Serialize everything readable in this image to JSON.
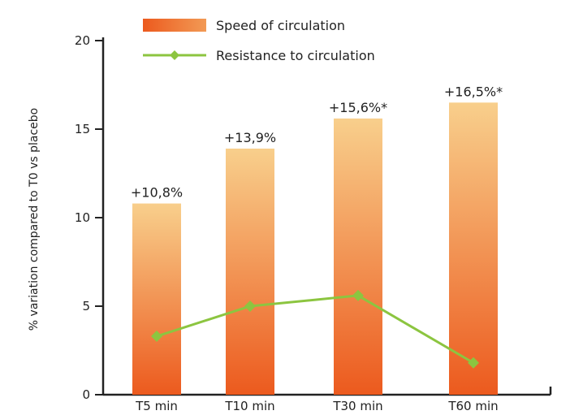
{
  "chart_data": {
    "type": "bar",
    "categories": [
      "T5 min",
      "T10 min",
      "T30 min",
      "T60 min"
    ],
    "ylabel": "% variation compared to T0 vs placebo",
    "xlabel": "",
    "ylim": [
      0,
      20
    ],
    "yticks": [
      0,
      5,
      10,
      15,
      20
    ],
    "grid": false,
    "legend_position": "top",
    "series": [
      {
        "name": "Speed of circulation",
        "kind": "bar",
        "values": [
          10.8,
          13.9,
          15.6,
          16.5
        ],
        "data_labels": [
          "+10,8%",
          "+13,9%",
          "+15,6%*",
          "+16,5%*"
        ],
        "color_top": "#f8cf8c",
        "color_bottom": "#ec5a1e"
      },
      {
        "name": "Resistance to circulation",
        "kind": "line",
        "values": [
          3.3,
          5.0,
          5.6,
          1.8
        ],
        "color": "#8cc540"
      }
    ]
  }
}
